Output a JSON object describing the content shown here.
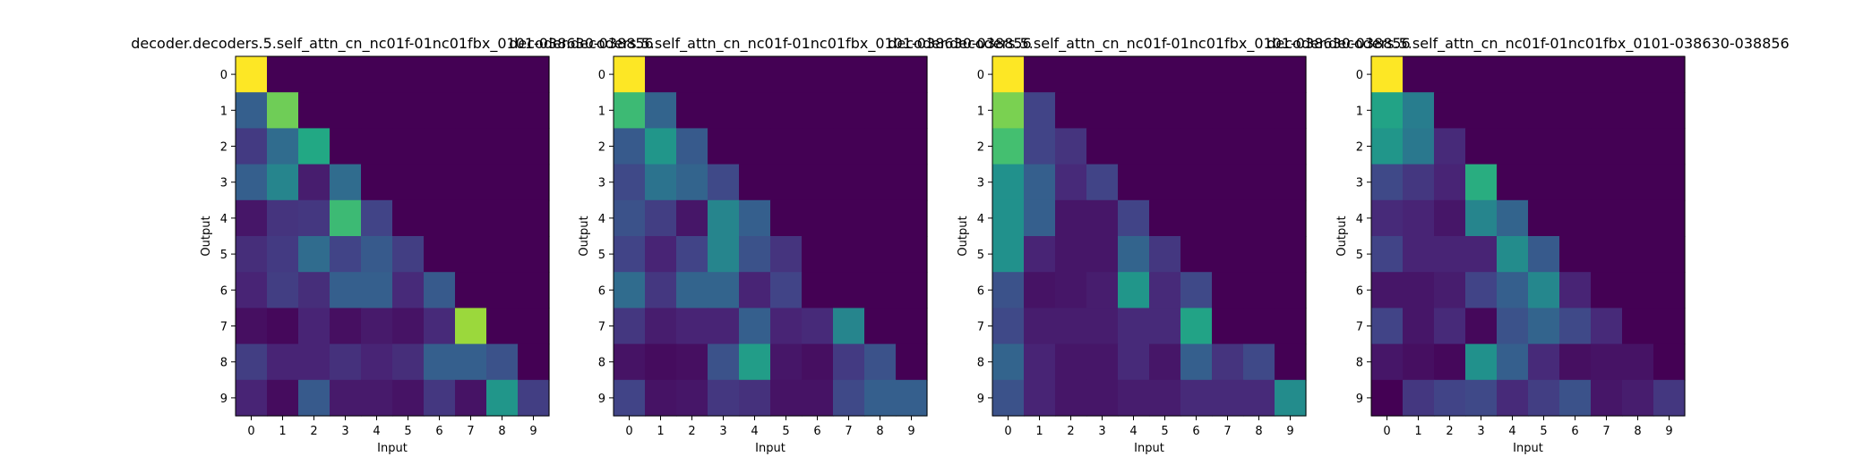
{
  "chart_data": [
    {
      "type": "heatmap",
      "title": "decoder.decoders.5.self_attn_cn_nc01f-01nc01fbx_0101-038630-038856",
      "xlabel": "Input",
      "ylabel": "Output",
      "x_ticks": [
        "0",
        "1",
        "2",
        "3",
        "4",
        "5",
        "6",
        "7",
        "8",
        "9"
      ],
      "y_ticks": [
        "0",
        "1",
        "2",
        "3",
        "4",
        "5",
        "6",
        "7",
        "8",
        "9"
      ],
      "colormap": "viridis",
      "value_range": [
        0,
        1
      ],
      "matrix": [
        [
          1.0,
          0.0,
          0.0,
          0.0,
          0.0,
          0.0,
          0.0,
          0.0,
          0.0,
          0.0
        ],
        [
          0.3,
          0.78,
          0.0,
          0.0,
          0.0,
          0.0,
          0.0,
          0.0,
          0.0,
          0.0
        ],
        [
          0.17,
          0.35,
          0.6,
          0.0,
          0.0,
          0.0,
          0.0,
          0.0,
          0.0,
          0.0
        ],
        [
          0.3,
          0.45,
          0.08,
          0.35,
          0.0,
          0.0,
          0.0,
          0.0,
          0.0,
          0.0
        ],
        [
          0.06,
          0.15,
          0.16,
          0.68,
          0.2,
          0.0,
          0.0,
          0.0,
          0.0,
          0.0
        ],
        [
          0.13,
          0.17,
          0.35,
          0.2,
          0.28,
          0.18,
          0.0,
          0.0,
          0.0,
          0.0
        ],
        [
          0.1,
          0.18,
          0.13,
          0.3,
          0.3,
          0.12,
          0.28,
          0.0,
          0.0,
          0.0
        ],
        [
          0.04,
          0.02,
          0.1,
          0.04,
          0.07,
          0.05,
          0.12,
          0.85,
          0.0,
          0.0
        ],
        [
          0.18,
          0.1,
          0.1,
          0.14,
          0.1,
          0.13,
          0.3,
          0.3,
          0.25,
          0.0
        ],
        [
          0.1,
          0.03,
          0.28,
          0.07,
          0.07,
          0.05,
          0.16,
          0.05,
          0.52,
          0.18
        ]
      ]
    },
    {
      "type": "heatmap",
      "title": "decoder.decoders.5.self_attn_cn_nc01f-01nc01fbx_0101-038630-038856",
      "xlabel": "Input",
      "ylabel": "Output",
      "x_ticks": [
        "0",
        "1",
        "2",
        "3",
        "4",
        "5",
        "6",
        "7",
        "8",
        "9"
      ],
      "y_ticks": [
        "0",
        "1",
        "2",
        "3",
        "4",
        "5",
        "6",
        "7",
        "8",
        "9"
      ],
      "colormap": "viridis",
      "value_range": [
        0,
        1
      ],
      "matrix": [
        [
          1.0,
          0.0,
          0.0,
          0.0,
          0.0,
          0.0,
          0.0,
          0.0,
          0.0,
          0.0
        ],
        [
          0.68,
          0.32,
          0.0,
          0.0,
          0.0,
          0.0,
          0.0,
          0.0,
          0.0,
          0.0
        ],
        [
          0.28,
          0.52,
          0.28,
          0.0,
          0.0,
          0.0,
          0.0,
          0.0,
          0.0,
          0.0
        ],
        [
          0.22,
          0.38,
          0.32,
          0.22,
          0.0,
          0.0,
          0.0,
          0.0,
          0.0,
          0.0
        ],
        [
          0.25,
          0.18,
          0.06,
          0.45,
          0.3,
          0.0,
          0.0,
          0.0,
          0.0,
          0.0
        ],
        [
          0.2,
          0.1,
          0.2,
          0.45,
          0.25,
          0.15,
          0.0,
          0.0,
          0.0,
          0.0
        ],
        [
          0.35,
          0.16,
          0.32,
          0.32,
          0.1,
          0.2,
          0.0,
          0.0,
          0.0,
          0.0
        ],
        [
          0.16,
          0.08,
          0.1,
          0.1,
          0.3,
          0.1,
          0.12,
          0.45,
          0.0,
          0.0
        ],
        [
          0.05,
          0.03,
          0.04,
          0.25,
          0.55,
          0.06,
          0.04,
          0.17,
          0.25,
          0.0
        ],
        [
          0.2,
          0.05,
          0.06,
          0.16,
          0.14,
          0.05,
          0.05,
          0.22,
          0.3,
          0.3
        ]
      ]
    },
    {
      "type": "heatmap",
      "title": "decoder.decoders.5.self_attn_cn_nc01f-01nc01fbx_0101-038630-038856",
      "xlabel": "Input",
      "ylabel": "Output",
      "x_ticks": [
        "0",
        "1",
        "2",
        "3",
        "4",
        "5",
        "6",
        "7",
        "8",
        "9"
      ],
      "y_ticks": [
        "0",
        "1",
        "2",
        "3",
        "4",
        "5",
        "6",
        "7",
        "8",
        "9"
      ],
      "colormap": "viridis",
      "value_range": [
        0,
        1
      ],
      "matrix": [
        [
          1.0,
          0.0,
          0.0,
          0.0,
          0.0,
          0.0,
          0.0,
          0.0,
          0.0,
          0.0
        ],
        [
          0.8,
          0.2,
          0.0,
          0.0,
          0.0,
          0.0,
          0.0,
          0.0,
          0.0,
          0.0
        ],
        [
          0.7,
          0.2,
          0.15,
          0.0,
          0.0,
          0.0,
          0.0,
          0.0,
          0.0,
          0.0
        ],
        [
          0.5,
          0.3,
          0.12,
          0.2,
          0.0,
          0.0,
          0.0,
          0.0,
          0.0,
          0.0
        ],
        [
          0.5,
          0.3,
          0.06,
          0.06,
          0.2,
          0.0,
          0.0,
          0.0,
          0.0,
          0.0
        ],
        [
          0.5,
          0.1,
          0.06,
          0.06,
          0.32,
          0.16,
          0.0,
          0.0,
          0.0,
          0.0
        ],
        [
          0.25,
          0.05,
          0.06,
          0.08,
          0.52,
          0.12,
          0.22,
          0.0,
          0.0,
          0.0
        ],
        [
          0.22,
          0.08,
          0.08,
          0.08,
          0.12,
          0.12,
          0.58,
          0.0,
          0.0,
          0.0
        ],
        [
          0.32,
          0.1,
          0.06,
          0.06,
          0.12,
          0.06,
          0.3,
          0.15,
          0.22,
          0.0
        ],
        [
          0.25,
          0.1,
          0.06,
          0.06,
          0.08,
          0.08,
          0.12,
          0.12,
          0.12,
          0.48
        ]
      ]
    },
    {
      "type": "heatmap",
      "title": "decoder.decoders.5.self_attn_cn_nc01f-01nc01fbx_0101-038630-038856",
      "xlabel": "Input",
      "ylabel": "Output",
      "x_ticks": [
        "0",
        "1",
        "2",
        "3",
        "4",
        "5",
        "6",
        "7",
        "8",
        "9"
      ],
      "y_ticks": [
        "0",
        "1",
        "2",
        "3",
        "4",
        "5",
        "6",
        "7",
        "8",
        "9"
      ],
      "colormap": "viridis",
      "value_range": [
        0,
        1
      ],
      "matrix": [
        [
          1.0,
          0.0,
          0.0,
          0.0,
          0.0,
          0.0,
          0.0,
          0.0,
          0.0,
          0.0
        ],
        [
          0.58,
          0.42,
          0.0,
          0.0,
          0.0,
          0.0,
          0.0,
          0.0,
          0.0,
          0.0
        ],
        [
          0.52,
          0.4,
          0.12,
          0.0,
          0.0,
          0.0,
          0.0,
          0.0,
          0.0,
          0.0
        ],
        [
          0.22,
          0.16,
          0.1,
          0.62,
          0.0,
          0.0,
          0.0,
          0.0,
          0.0,
          0.0
        ],
        [
          0.12,
          0.1,
          0.06,
          0.45,
          0.32,
          0.0,
          0.0,
          0.0,
          0.0,
          0.0
        ],
        [
          0.2,
          0.1,
          0.1,
          0.1,
          0.48,
          0.28,
          0.0,
          0.0,
          0.0,
          0.0
        ],
        [
          0.06,
          0.06,
          0.08,
          0.2,
          0.3,
          0.46,
          0.1,
          0.0,
          0.0,
          0.0
        ],
        [
          0.2,
          0.06,
          0.12,
          0.02,
          0.25,
          0.32,
          0.22,
          0.12,
          0.0,
          0.0
        ],
        [
          0.06,
          0.04,
          0.02,
          0.5,
          0.3,
          0.12,
          0.04,
          0.05,
          0.05,
          0.0
        ],
        [
          0.0,
          0.16,
          0.2,
          0.22,
          0.12,
          0.18,
          0.25,
          0.06,
          0.08,
          0.16
        ]
      ]
    }
  ]
}
